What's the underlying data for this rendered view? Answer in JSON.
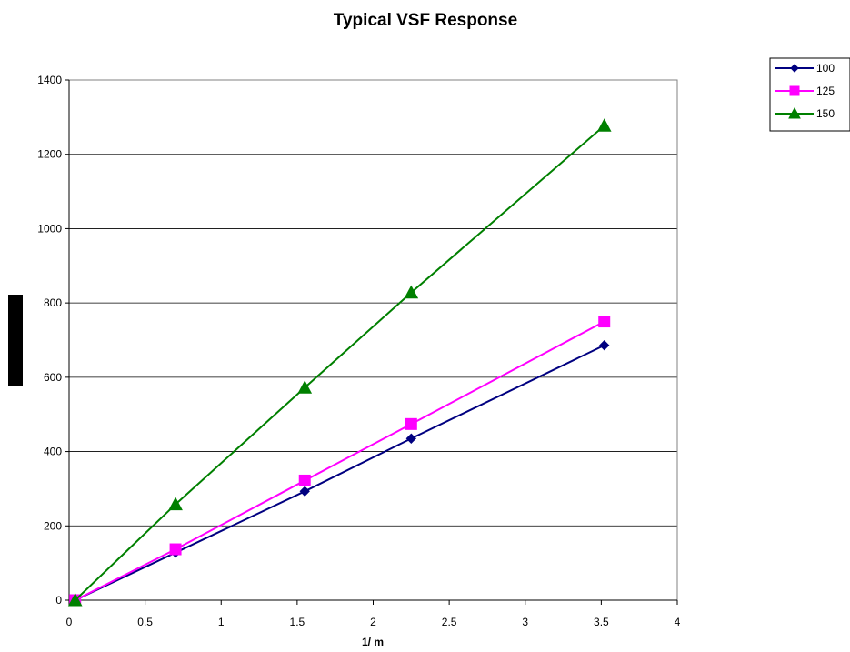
{
  "chart_data": {
    "type": "line",
    "title": "Typical VSF Response",
    "xlabel": "1/ m",
    "ylabel": "",
    "xlim": [
      0,
      4
    ],
    "ylim": [
      0,
      1400
    ],
    "xticks": [
      0,
      0.5,
      1,
      1.5,
      2,
      2.5,
      3,
      3.5,
      4
    ],
    "xtick_labels": [
      "0",
      "0.5",
      "1",
      "1.5",
      "2",
      "2.5",
      "3",
      "3.5",
      "4"
    ],
    "yticks": [
      0,
      200,
      400,
      600,
      800,
      1000,
      1200,
      1400
    ],
    "ytick_labels": [
      "0",
      "200",
      "400",
      "600",
      "800",
      "1000",
      "1200",
      "1400"
    ],
    "grid": "horizontal",
    "legend_position": "top-right",
    "series": [
      {
        "name": "100",
        "color": "#000080",
        "marker": "diamond",
        "x": [
          0.04,
          0.7,
          1.55,
          2.25,
          3.52
        ],
        "y": [
          0,
          128,
          293,
          435,
          686
        ]
      },
      {
        "name": "125",
        "color": "#ff00ff",
        "marker": "square",
        "x": [
          0.04,
          0.7,
          1.55,
          2.25,
          3.52
        ],
        "y": [
          0,
          137,
          322,
          474,
          750
        ]
      },
      {
        "name": "150",
        "color": "#008000",
        "marker": "triangle",
        "x": [
          0.04,
          0.7,
          1.55,
          2.25,
          3.52
        ],
        "y": [
          0,
          258,
          572,
          828,
          1277
        ]
      }
    ]
  }
}
